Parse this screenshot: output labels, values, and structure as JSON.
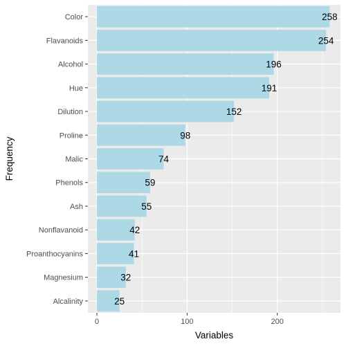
{
  "chart_data": {
    "type": "bar",
    "orientation": "horizontal",
    "categories": [
      "Color",
      "Flavanoids",
      "Alcohol",
      "Hue",
      "Dilution",
      "Proline",
      "Malic",
      "Phenols",
      "Ash",
      "Nonflavanoid",
      "Proanthocyanins",
      "Magnesium",
      "Alcalinity"
    ],
    "values": [
      258,
      254,
      196,
      191,
      152,
      98,
      74,
      59,
      55,
      42,
      41,
      32,
      25
    ],
    "xlabel": "Variables",
    "ylabel": "Frequency",
    "xlim": [
      -10,
      270
    ],
    "xticks": [
      0,
      100,
      200
    ],
    "grid": true,
    "legend": "none",
    "colors": {
      "bar": "#add8e6",
      "panel": "#ebebeb",
      "grid": "#ffffff",
      "text": "#000000",
      "tick_text": "#4d4d4d"
    }
  }
}
